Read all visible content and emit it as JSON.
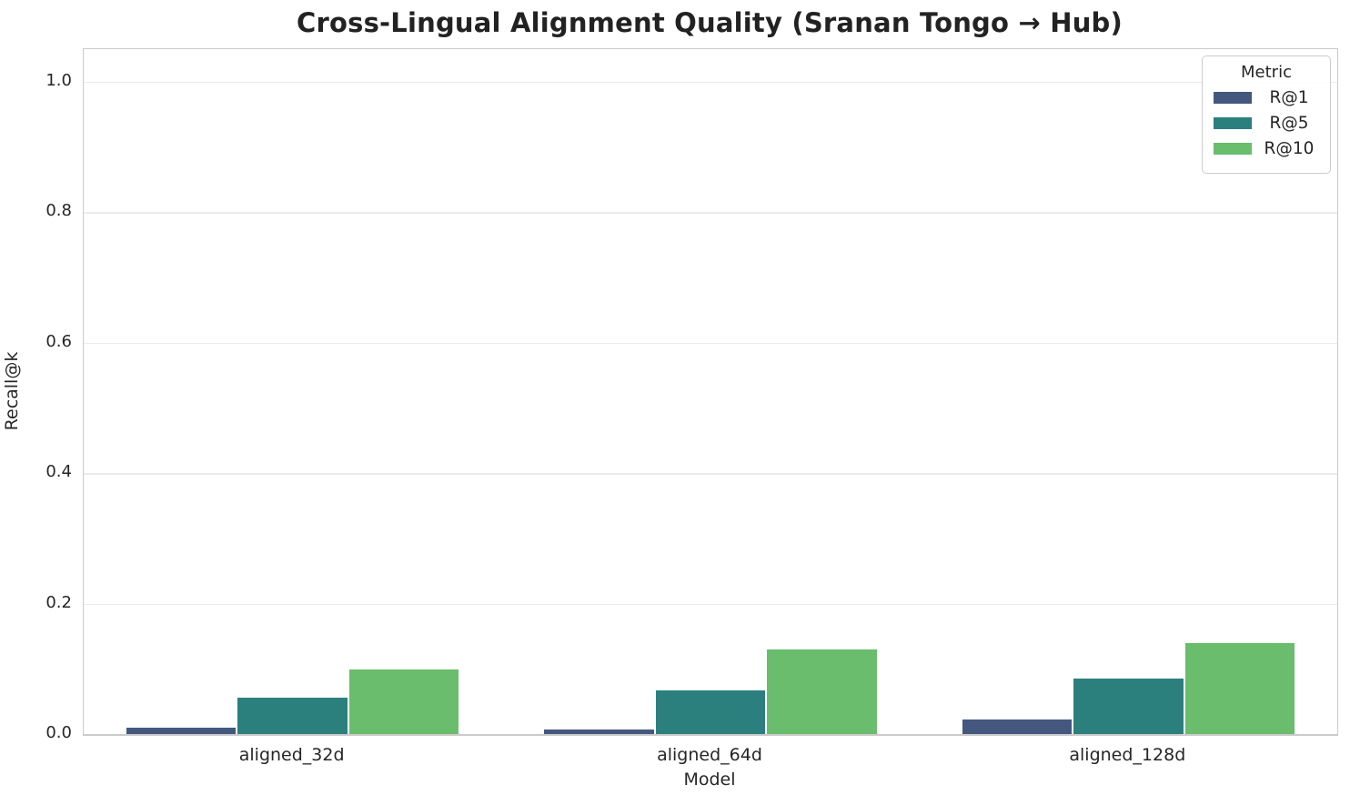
{
  "chart_data": {
    "type": "bar",
    "title": "Cross-Lingual Alignment Quality (Sranan Tongo → Hub)",
    "xlabel": "Model",
    "ylabel": "Recall@k",
    "categories": [
      "aligned_32d",
      "aligned_64d",
      "aligned_128d"
    ],
    "series": [
      {
        "name": "R@1",
        "color": "#44577f",
        "values": [
          0.01,
          0.007,
          0.023
        ]
      },
      {
        "name": "R@5",
        "color": "#2b807e",
        "values": [
          0.056,
          0.067,
          0.085
        ]
      },
      {
        "name": "R@10",
        "color": "#69bd6c",
        "values": [
          0.099,
          0.129,
          0.14
        ]
      }
    ],
    "ylim": [
      0,
      1.05
    ],
    "yticks": [
      "0.0",
      "0.2",
      "0.4",
      "0.6",
      "0.8",
      "1.0"
    ],
    "grid": true,
    "legend": {
      "title": "Metric",
      "position": "upper right"
    }
  },
  "style_colors": {
    "grid": "#ebebeb",
    "spine": "#cbcbcb",
    "text": "#262626"
  }
}
